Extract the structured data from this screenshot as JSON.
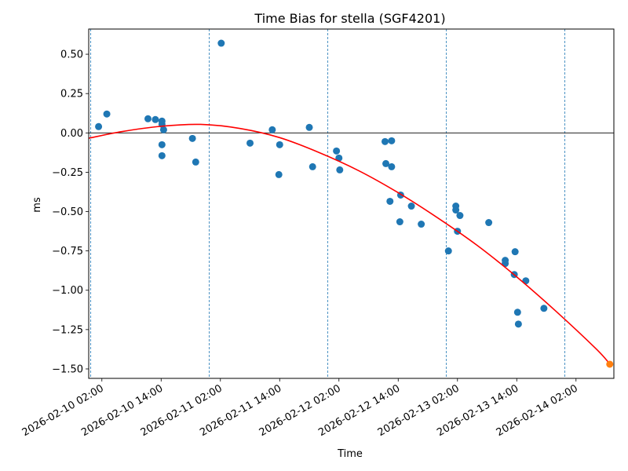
{
  "chart_data": {
    "type": "scatter",
    "title": "Time Bias for stella (SGF4201)",
    "xlabel": "Time",
    "ylabel": "ms",
    "x_unit": "date",
    "xlim": [
      "2026-02-09 23:20",
      "2026-02-14 09:40"
    ],
    "ylim": [
      -1.56,
      0.66
    ],
    "xticks": [
      {
        "value": "2026-02-10 02:00",
        "label": "2026-02-10 02:00"
      },
      {
        "value": "2026-02-10 14:00",
        "label": "2026-02-10 14:00"
      },
      {
        "value": "2026-02-11 02:00",
        "label": "2026-02-11 02:00"
      },
      {
        "value": "2026-02-11 14:00",
        "label": "2026-02-11 14:00"
      },
      {
        "value": "2026-02-12 02:00",
        "label": "2026-02-12 02:00"
      },
      {
        "value": "2026-02-12 14:00",
        "label": "2026-02-12 14:00"
      },
      {
        "value": "2026-02-13 02:00",
        "label": "2026-02-13 02:00"
      },
      {
        "value": "2026-02-13 14:00",
        "label": "2026-02-13 14:00"
      },
      {
        "value": "2026-02-14 02:00",
        "label": "2026-02-14 02:00"
      }
    ],
    "yticks": [
      {
        "value": 0.5,
        "label": "0.50"
      },
      {
        "value": 0.25,
        "label": "0.25"
      },
      {
        "value": 0.0,
        "label": "0.00"
      },
      {
        "value": -0.25,
        "label": "−0.25"
      },
      {
        "value": -0.5,
        "label": "−0.50"
      },
      {
        "value": -0.75,
        "label": "−0.75"
      },
      {
        "value": -1.0,
        "label": "−1.00"
      },
      {
        "value": -1.25,
        "label": "−1.25"
      },
      {
        "value": -1.5,
        "label": "−1.50"
      }
    ],
    "grid": false,
    "zero_line": 0.0,
    "day_boundaries": [
      "2026-02-09 23:45",
      "2026-02-10 23:45",
      "2026-02-11 23:45",
      "2026-02-12 23:45",
      "2026-02-13 23:45"
    ],
    "colors": {
      "points": "#1f77b4",
      "fit": "#ff0000",
      "prediction": "#ff7f0e",
      "boundaries": "#1f77b4"
    },
    "series": [
      {
        "kind": "points",
        "points": [
          {
            "x": "2026-02-10 01:20",
            "y": 0.04
          },
          {
            "x": "2026-02-10 03:00",
            "y": 0.12
          },
          {
            "x": "2026-02-10 11:20",
            "y": 0.09
          },
          {
            "x": "2026-02-10 12:50",
            "y": 0.085
          },
          {
            "x": "2026-02-10 14:10",
            "y": 0.075
          },
          {
            "x": "2026-02-10 14:10",
            "y": 0.055
          },
          {
            "x": "2026-02-10 14:30",
            "y": 0.02
          },
          {
            "x": "2026-02-10 14:10",
            "y": -0.075
          },
          {
            "x": "2026-02-10 14:10",
            "y": -0.145
          },
          {
            "x": "2026-02-10 20:20",
            "y": -0.035
          },
          {
            "x": "2026-02-10 21:00",
            "y": -0.185
          },
          {
            "x": "2026-02-11 02:10",
            "y": 0.57
          },
          {
            "x": "2026-02-11 08:00",
            "y": -0.065
          },
          {
            "x": "2026-02-11 12:30",
            "y": 0.02
          },
          {
            "x": "2026-02-11 13:50",
            "y": -0.265
          },
          {
            "x": "2026-02-11 14:00",
            "y": -0.075
          },
          {
            "x": "2026-02-11 20:00",
            "y": 0.035
          },
          {
            "x": "2026-02-11 20:40",
            "y": -0.215
          },
          {
            "x": "2026-02-12 01:30",
            "y": -0.115
          },
          {
            "x": "2026-02-12 02:00",
            "y": -0.16
          },
          {
            "x": "2026-02-12 02:10",
            "y": -0.235
          },
          {
            "x": "2026-02-12 11:20",
            "y": -0.055
          },
          {
            "x": "2026-02-12 11:30",
            "y": -0.195
          },
          {
            "x": "2026-02-12 12:40",
            "y": -0.215
          },
          {
            "x": "2026-02-12 12:40",
            "y": -0.05
          },
          {
            "x": "2026-02-12 12:20",
            "y": -0.435
          },
          {
            "x": "2026-02-12 14:30",
            "y": -0.395
          },
          {
            "x": "2026-02-12 14:20",
            "y": -0.565
          },
          {
            "x": "2026-02-12 16:40",
            "y": -0.465
          },
          {
            "x": "2026-02-12 18:40",
            "y": -0.58
          },
          {
            "x": "2026-02-13 00:10",
            "y": -0.75
          },
          {
            "x": "2026-02-13 01:40",
            "y": -0.465
          },
          {
            "x": "2026-02-13 01:40",
            "y": -0.49
          },
          {
            "x": "2026-02-13 02:30",
            "y": -0.525
          },
          {
            "x": "2026-02-13 02:00",
            "y": -0.625
          },
          {
            "x": "2026-02-13 08:20",
            "y": -0.57
          },
          {
            "x": "2026-02-13 11:40",
            "y": -0.81
          },
          {
            "x": "2026-02-13 11:40",
            "y": -0.83
          },
          {
            "x": "2026-02-13 13:40",
            "y": -0.755
          },
          {
            "x": "2026-02-13 13:30",
            "y": -0.9
          },
          {
            "x": "2026-02-13 15:50",
            "y": -0.94
          },
          {
            "x": "2026-02-13 14:10",
            "y": -1.14
          },
          {
            "x": "2026-02-13 14:20",
            "y": -1.215
          },
          {
            "x": "2026-02-13 19:30",
            "y": -1.115
          }
        ]
      },
      {
        "kind": "fit",
        "points": [
          {
            "x": "2026-02-09 23:20",
            "y": -0.034
          },
          {
            "x": "2026-02-10 06:00",
            "y": 0.008
          },
          {
            "x": "2026-02-10 14:00",
            "y": 0.042
          },
          {
            "x": "2026-02-10 22:00",
            "y": 0.054
          },
          {
            "x": "2026-02-11 06:00",
            "y": 0.028
          },
          {
            "x": "2026-02-11 14:00",
            "y": -0.03
          },
          {
            "x": "2026-02-11 22:00",
            "y": -0.125
          },
          {
            "x": "2026-02-12 06:00",
            "y": -0.24
          },
          {
            "x": "2026-02-12 14:00",
            "y": -0.38
          },
          {
            "x": "2026-02-12 22:00",
            "y": -0.54
          },
          {
            "x": "2026-02-13 06:00",
            "y": -0.715
          },
          {
            "x": "2026-02-13 14:00",
            "y": -0.915
          },
          {
            "x": "2026-02-13 22:00",
            "y": -1.135
          },
          {
            "x": "2026-02-14 06:00",
            "y": -1.37
          },
          {
            "x": "2026-02-14 08:30",
            "y": -1.455
          }
        ]
      },
      {
        "kind": "prediction",
        "points": [
          {
            "x": "2026-02-14 08:50",
            "y": -1.47
          }
        ]
      }
    ]
  }
}
